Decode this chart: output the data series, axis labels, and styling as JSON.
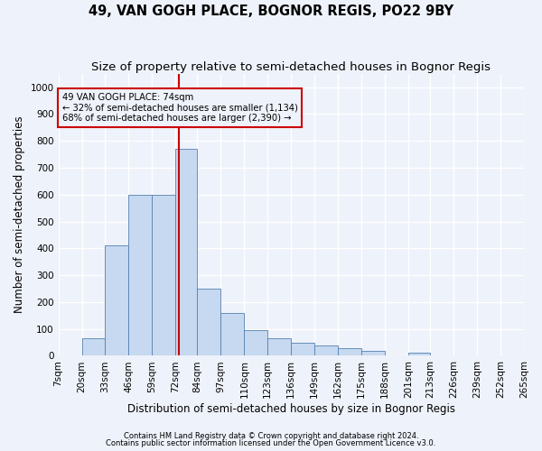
{
  "title": "49, VAN GOGH PLACE, BOGNOR REGIS, PO22 9BY",
  "subtitle": "Size of property relative to semi-detached houses in Bognor Regis",
  "xlabel": "Distribution of semi-detached houses by size in Bognor Regis",
  "ylabel": "Number of semi-detached properties",
  "footnote1": "Contains HM Land Registry data © Crown copyright and database right 2024.",
  "footnote2": "Contains public sector information licensed under the Open Government Licence v3.0.",
  "annotation_line1": "49 VAN GOGH PLACE: 74sqm",
  "annotation_line2": "← 32% of semi-detached houses are smaller (1,134)",
  "annotation_line3": "68% of semi-detached houses are larger (2,390) →",
  "property_size": 74,
  "bar_color": "#c6d9f0",
  "bar_edge_color": "#5580b0",
  "vline_color": "#cc0000",
  "annotation_box_color": "#cc0000",
  "bins": [
    7,
    20,
    33,
    46,
    59,
    72,
    84,
    97,
    110,
    123,
    136,
    149,
    162,
    175,
    188,
    201,
    213,
    226,
    239,
    252,
    265
  ],
  "bin_labels": [
    "7sqm",
    "20sqm",
    "33sqm",
    "46sqm",
    "59sqm",
    "72sqm",
    "84sqm",
    "97sqm",
    "110sqm",
    "123sqm",
    "136sqm",
    "149sqm",
    "162sqm",
    "175sqm",
    "188sqm",
    "201sqm",
    "213sqm",
    "226sqm",
    "239sqm",
    "252sqm",
    "265sqm"
  ],
  "counts": [
    0,
    65,
    410,
    600,
    600,
    770,
    250,
    160,
    95,
    65,
    50,
    40,
    30,
    20,
    0,
    10,
    0,
    0,
    0,
    0
  ],
  "ylim": [
    0,
    1050
  ],
  "yticks": [
    0,
    100,
    200,
    300,
    400,
    500,
    600,
    700,
    800,
    900,
    1000
  ],
  "background_color": "#eef2fa",
  "grid_color": "#ffffff",
  "title_fontsize": 10.5,
  "subtitle_fontsize": 9.5,
  "axis_label_fontsize": 8.5,
  "tick_fontsize": 7.5,
  "footnote_fontsize": 6.0
}
